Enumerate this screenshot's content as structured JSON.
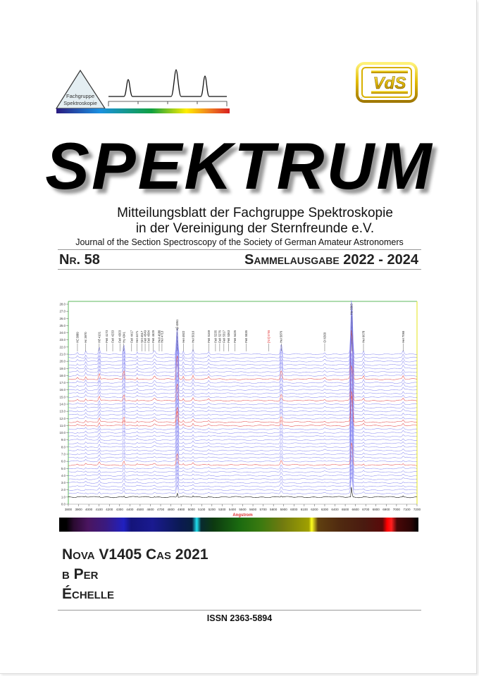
{
  "logos": {
    "fachgruppe": {
      "line1": "Fachgruppe",
      "line2": "Spektroskopie"
    },
    "vds": {
      "text": "VdS"
    }
  },
  "title": "SPEKTRUM",
  "subtitle": {
    "line1": "Mitteilungsblatt der Fachgruppe Spektroskopie",
    "line2": "in der Vereinigung der Sternfreunde e.V.",
    "english": "Journal of the Section Spectroscopy of the Society of German Amateur Astronomers"
  },
  "issue": {
    "number": "Nr. 58",
    "edition": "Sammelausgabe 2022 - 2024"
  },
  "chart_data": {
    "type": "line",
    "xlabel": "Angstrom",
    "xlim": [
      3800,
      7200
    ],
    "ylim": [
      0,
      28
    ],
    "x_ticks": [
      3800,
      3900,
      4000,
      4100,
      4200,
      4300,
      4400,
      4500,
      4600,
      4700,
      4800,
      4900,
      5000,
      5100,
      5200,
      5300,
      5400,
      5500,
      5600,
      5700,
      5800,
      5900,
      6000,
      6100,
      6200,
      6300,
      6400,
      6500,
      6600,
      6700,
      6800,
      6900,
      7000,
      7100,
      7200
    ],
    "y_ticks": [
      "0.0",
      "1.0",
      "2.0",
      "3.0",
      "4.0",
      "5.0",
      "6.0",
      "7.0",
      "8.0",
      "9.0",
      "10.0",
      "11.0",
      "12.0",
      "13.0",
      "14.0",
      "15.0",
      "16.0",
      "17.0",
      "18.0",
      "19.0",
      "20.0",
      "21.0",
      "22.0",
      "23.0",
      "24.0",
      "25.0",
      "26.0",
      "27.0",
      "28.0"
    ],
    "grid": false,
    "colors": {
      "trace": "#7b7bf0",
      "highlight": "#e03030",
      "reference": "#000000",
      "frame_left": "#5cb85c",
      "frame_right": "#e8e840"
    },
    "annotations": [
      {
        "wl": 3889,
        "label": "Hζ 3889"
      },
      {
        "wl": 3970,
        "label": "Hε 3970"
      },
      {
        "wl": 4101,
        "label": "Hδ 4101"
      },
      {
        "wl": 4173,
        "label": "FeII 4173"
      },
      {
        "wl": 4233,
        "label": "FeII 4233"
      },
      {
        "wl": 4303,
        "label": "FeII 4303"
      },
      {
        "wl": 4341,
        "label": "Hγ 4341"
      },
      {
        "wl": 4417,
        "label": "FeII 4417"
      },
      {
        "wl": 4471,
        "label": "HeI 4471"
      },
      {
        "wl": 4517,
        "label": "NIII 4517"
      },
      {
        "wl": 4549,
        "label": "FeII 4549"
      },
      {
        "wl": 4584,
        "label": "FeII 4584"
      },
      {
        "wl": 4629,
        "label": "FeII 4629"
      },
      {
        "wl": 4686,
        "label": "HeII 4686"
      },
      {
        "wl": 4713,
        "label": "HeI 4713"
      },
      {
        "wl": 4861,
        "label": "Hβ 4861"
      },
      {
        "wl": 4922,
        "label": "HeI 4922"
      },
      {
        "wl": 5016,
        "label": "HeI 5016"
      },
      {
        "wl": 5169,
        "label": "FeII 5169"
      },
      {
        "wl": 5235,
        "label": "FeII 5235"
      },
      {
        "wl": 5276,
        "label": "FeII 5276"
      },
      {
        "wl": 5317,
        "label": "FeII 5317"
      },
      {
        "wl": 5363,
        "label": "FeII 5363"
      },
      {
        "wl": 5425,
        "label": "FeII 5425"
      },
      {
        "wl": 5535,
        "label": "FeII 5535"
      },
      {
        "wl": 5755,
        "label": "[NII] 5755",
        "highlight": true
      },
      {
        "wl": 5876,
        "label": "HeI 5876"
      },
      {
        "wl": 6300,
        "label": "OI 6300"
      },
      {
        "wl": 6563,
        "label": "Hα 6563"
      },
      {
        "wl": 6678,
        "label": "HeI 6678"
      },
      {
        "wl": 7065,
        "label": "HeI 7065"
      }
    ]
  },
  "topics": [
    "Nova V1405 Cas 2021",
    "β Per",
    "Échelle"
  ],
  "issn": "ISSN 2363-5894"
}
